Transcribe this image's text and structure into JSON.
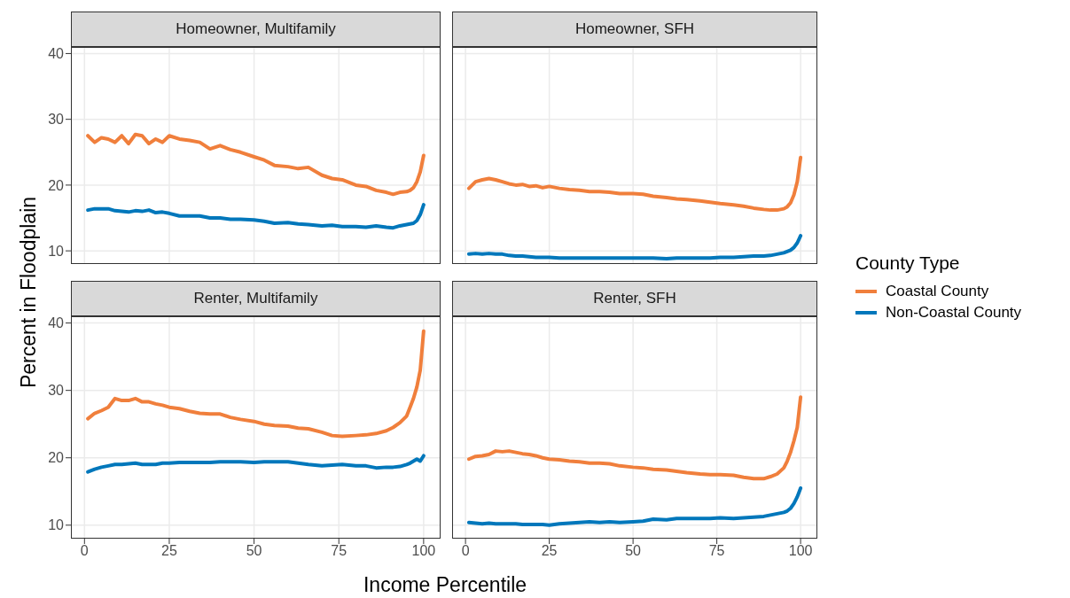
{
  "chart_data": [
    {
      "type": "line",
      "title": "Homeowner, Multifamily",
      "ylabel": "Percent in Floodplain",
      "legend_title": "County Type",
      "legend": "right",
      "grid": true,
      "tick_labels": "y",
      "xlim": [
        -4,
        105
      ],
      "ylim": [
        8,
        41
      ],
      "xticks": [
        0,
        25,
        50,
        75,
        100
      ],
      "yticks": [
        10,
        20,
        30,
        40
      ],
      "x": [
        1,
        3,
        5,
        7,
        9,
        11,
        13,
        15,
        17,
        19,
        21,
        23,
        25,
        28,
        31,
        34,
        37,
        40,
        43,
        46,
        50,
        53,
        56,
        60,
        63,
        66,
        70,
        73,
        76,
        80,
        83,
        86,
        89,
        91,
        93,
        95,
        96,
        97,
        98,
        99,
        100
      ],
      "series": [
        {
          "name": "Coastal County",
          "color": "#f07f3c",
          "values": [
            27.5,
            26.5,
            27.2,
            27,
            26.5,
            27.5,
            26.3,
            27.7,
            27.5,
            26.3,
            27,
            26.5,
            27.5,
            27,
            26.8,
            26.5,
            25.5,
            26,
            25.4,
            25,
            24.3,
            23.8,
            23,
            22.8,
            22.5,
            22.7,
            21.5,
            21,
            20.8,
            20,
            19.8,
            19.2,
            18.9,
            18.6,
            18.9,
            19,
            19.2,
            19.6,
            20.5,
            22,
            24.5
          ]
        },
        {
          "name": "Non-Coastal County",
          "color": "#0077bb",
          "values": [
            16.2,
            16.4,
            16.4,
            16.4,
            16.1,
            16,
            15.9,
            16.1,
            16.0,
            16.2,
            15.8,
            15.9,
            15.7,
            15.3,
            15.3,
            15.3,
            15,
            15,
            14.8,
            14.8,
            14.7,
            14.5,
            14.2,
            14.3,
            14.1,
            14,
            13.8,
            13.9,
            13.7,
            13.7,
            13.6,
            13.8,
            13.6,
            13.5,
            13.8,
            14,
            14.1,
            14.2,
            14.6,
            15.5,
            17
          ]
        }
      ]
    },
    {
      "type": "line",
      "title": "Homeowner, SFH",
      "grid": true,
      "tick_labels": false,
      "xlim": [
        -4,
        105
      ],
      "ylim": [
        8,
        41
      ],
      "xticks": [
        0,
        25,
        50,
        75,
        100
      ],
      "yticks": [
        10,
        20,
        30,
        40
      ],
      "x": [
        1,
        3,
        5,
        7,
        9,
        11,
        13,
        15,
        17,
        19,
        21,
        23,
        25,
        28,
        31,
        34,
        37,
        40,
        43,
        46,
        50,
        53,
        56,
        60,
        63,
        66,
        70,
        73,
        76,
        80,
        83,
        86,
        89,
        91,
        93,
        95,
        96,
        97,
        98,
        99,
        100
      ],
      "series": [
        {
          "color": "#f07f3c",
          "values": [
            19.5,
            20.5,
            20.8,
            21,
            20.8,
            20.5,
            20.2,
            20.0,
            20.1,
            19.8,
            19.9,
            19.6,
            19.8,
            19.5,
            19.3,
            19.2,
            19,
            19,
            18.9,
            18.7,
            18.7,
            18.6,
            18.3,
            18.1,
            17.9,
            17.8,
            17.6,
            17.4,
            17.2,
            17,
            16.8,
            16.5,
            16.3,
            16.2,
            16.2,
            16.4,
            16.7,
            17.3,
            18.5,
            20.5,
            24.2
          ]
        },
        {
          "color": "#0077bb",
          "values": [
            9.5,
            9.6,
            9.5,
            9.6,
            9.5,
            9.5,
            9.3,
            9.2,
            9.2,
            9.1,
            9.0,
            9.0,
            9.0,
            8.9,
            8.9,
            8.9,
            8.9,
            8.9,
            8.9,
            8.9,
            8.9,
            8.9,
            8.9,
            8.8,
            8.9,
            8.9,
            8.9,
            8.9,
            9.0,
            9.0,
            9.1,
            9.2,
            9.2,
            9.3,
            9.5,
            9.7,
            9.9,
            10.1,
            10.5,
            11.2,
            12.3
          ]
        }
      ]
    },
    {
      "type": "line",
      "title": "Renter, Multifamily",
      "xlabel": "Income Percentile",
      "grid": true,
      "xlim": [
        -4,
        105
      ],
      "ylim": [
        8,
        41
      ],
      "xticks": [
        0,
        25,
        50,
        75,
        100
      ],
      "yticks": [
        10,
        20,
        30,
        40
      ],
      "x": [
        1,
        3,
        5,
        7,
        9,
        11,
        13,
        15,
        17,
        19,
        21,
        23,
        25,
        28,
        31,
        34,
        37,
        40,
        43,
        46,
        50,
        53,
        56,
        60,
        63,
        66,
        70,
        73,
        76,
        80,
        83,
        86,
        89,
        91,
        93,
        95,
        96,
        97,
        98,
        99,
        100
      ],
      "series": [
        {
          "color": "#f07f3c",
          "values": [
            25.8,
            26.6,
            27,
            27.5,
            28.8,
            28.5,
            28.5,
            28.8,
            28.3,
            28.3,
            28.0,
            27.8,
            27.5,
            27.3,
            26.9,
            26.6,
            26.5,
            26.5,
            26,
            25.7,
            25.4,
            25,
            24.8,
            24.7,
            24.4,
            24.3,
            23.8,
            23.3,
            23.2,
            23.3,
            23.4,
            23.6,
            24,
            24.5,
            25.2,
            26.2,
            27.5,
            28.8,
            30.5,
            33,
            38.8
          ]
        },
        {
          "color": "#0077bb",
          "values": [
            17.9,
            18.3,
            18.6,
            18.8,
            19,
            19,
            19.1,
            19.2,
            19,
            19,
            19,
            19.2,
            19.2,
            19.3,
            19.3,
            19.3,
            19.3,
            19.4,
            19.4,
            19.4,
            19.3,
            19.4,
            19.4,
            19.4,
            19.2,
            19,
            18.8,
            18.9,
            19,
            18.8,
            18.8,
            18.5,
            18.6,
            18.6,
            18.7,
            19,
            19.2,
            19.5,
            19.8,
            19.5,
            20.3
          ]
        }
      ]
    },
    {
      "type": "line",
      "title": "Renter, SFH",
      "grid": true,
      "tick_labels": "x",
      "xlim": [
        -4,
        105
      ],
      "ylim": [
        8,
        41
      ],
      "xticks": [
        0,
        25,
        50,
        75,
        100
      ],
      "yticks": [
        10,
        20,
        30,
        40
      ],
      "x": [
        1,
        3,
        5,
        7,
        9,
        11,
        13,
        15,
        17,
        19,
        21,
        23,
        25,
        28,
        31,
        34,
        37,
        40,
        43,
        46,
        50,
        53,
        56,
        60,
        63,
        66,
        70,
        73,
        76,
        80,
        83,
        86,
        89,
        91,
        93,
        95,
        96,
        97,
        98,
        99,
        100
      ],
      "series": [
        {
          "color": "#f07f3c",
          "values": [
            19.8,
            20.2,
            20.3,
            20.5,
            21,
            20.9,
            21,
            20.8,
            20.6,
            20.5,
            20.3,
            20.0,
            19.8,
            19.7,
            19.5,
            19.4,
            19.2,
            19.2,
            19.1,
            18.8,
            18.6,
            18.5,
            18.3,
            18.2,
            18,
            17.8,
            17.6,
            17.5,
            17.5,
            17.4,
            17.1,
            16.9,
            16.9,
            17.2,
            17.6,
            18.5,
            19.5,
            20.8,
            22.5,
            24.5,
            29
          ]
        },
        {
          "color": "#0077bb",
          "values": [
            10.4,
            10.3,
            10.2,
            10.3,
            10.2,
            10.2,
            10.2,
            10.2,
            10.1,
            10.1,
            10.1,
            10.1,
            10,
            10.2,
            10.3,
            10.4,
            10.5,
            10.4,
            10.5,
            10.4,
            10.5,
            10.6,
            10.9,
            10.8,
            11,
            11,
            11,
            11,
            11.1,
            11,
            11.1,
            11.2,
            11.3,
            11.5,
            11.7,
            11.9,
            12.1,
            12.5,
            13.2,
            14.2,
            15.5
          ]
        }
      ]
    }
  ]
}
